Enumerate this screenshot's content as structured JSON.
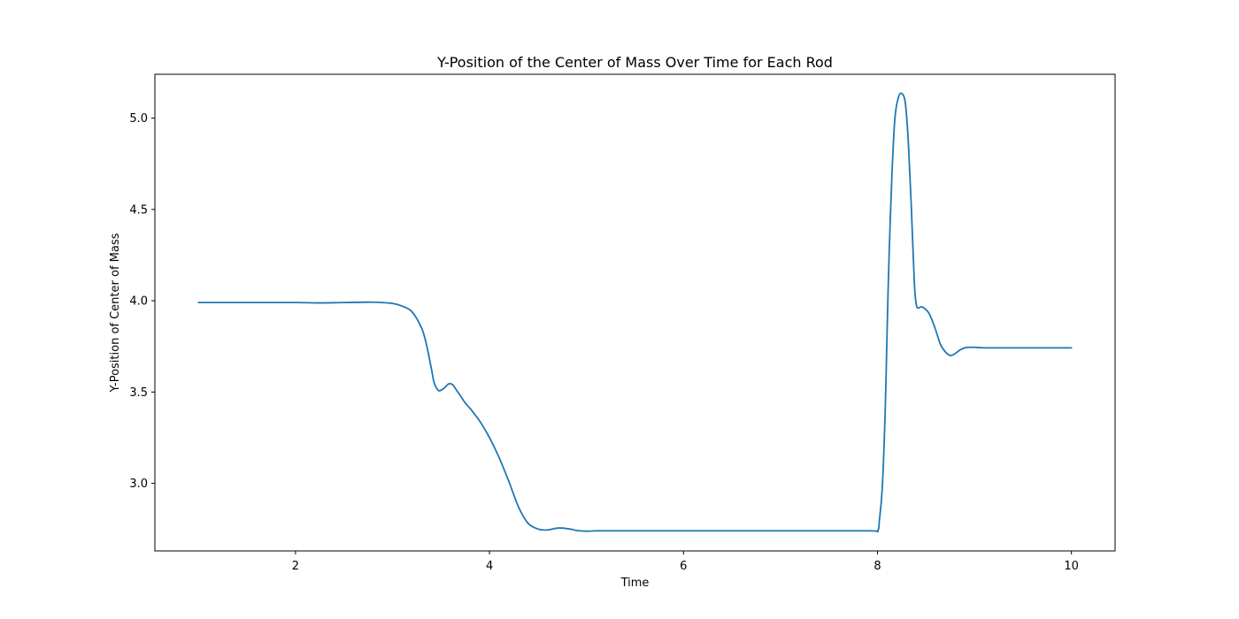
{
  "chart_data": {
    "type": "line",
    "title": "Y-Position of the Center of Mass Over Time for Each Rod",
    "xlabel": "Time",
    "ylabel": "Y-Position of Center of Mass",
    "xlim": [
      0.55,
      10.45
    ],
    "ylim": [
      2.63,
      5.24
    ],
    "xticks": [
      2,
      4,
      6,
      8,
      10
    ],
    "yticks": [
      3.0,
      3.5,
      4.0,
      4.5,
      5.0
    ],
    "xtick_labels": [
      "2",
      "4",
      "6",
      "8",
      "10"
    ],
    "ytick_labels": [
      "3.0",
      "3.5",
      "4.0",
      "4.5",
      "5.0"
    ],
    "grid": false,
    "colors": {
      "line": "#1f77b4",
      "axes": "#000000"
    },
    "series": [
      {
        "x": [
          1.0,
          1.5,
          2.0,
          2.25,
          2.5,
          2.8,
          3.0,
          3.1,
          3.2,
          3.3,
          3.35,
          3.4,
          3.43,
          3.47,
          3.5,
          3.54,
          3.58,
          3.62,
          3.66,
          3.7,
          3.75,
          3.8,
          3.9,
          4.0,
          4.1,
          4.2,
          4.3,
          4.4,
          4.5,
          4.55,
          4.6,
          4.65,
          4.7,
          4.75,
          4.8,
          4.85,
          4.9,
          5.0,
          5.1,
          5.2,
          5.5,
          6.0,
          7.0,
          7.9,
          8.0,
          8.02,
          8.05,
          8.08,
          8.1,
          8.12,
          8.15,
          8.18,
          8.22,
          8.26,
          8.29,
          8.32,
          8.35,
          8.38,
          8.4,
          8.42,
          8.45,
          8.48,
          8.52,
          8.55,
          8.6,
          8.65,
          8.7,
          8.75,
          8.8,
          8.85,
          8.9,
          8.95,
          9.0,
          9.1,
          9.3,
          9.6,
          10.0
        ],
        "y": [
          3.99,
          3.99,
          3.99,
          3.988,
          3.99,
          3.992,
          3.985,
          3.97,
          3.94,
          3.85,
          3.76,
          3.63,
          3.55,
          3.51,
          3.51,
          3.525,
          3.545,
          3.54,
          3.51,
          3.48,
          3.44,
          3.41,
          3.34,
          3.25,
          3.14,
          3.01,
          2.87,
          2.78,
          2.75,
          2.745,
          2.745,
          2.75,
          2.755,
          2.755,
          2.752,
          2.748,
          2.742,
          2.738,
          2.74,
          2.74,
          2.74,
          2.74,
          2.74,
          2.74,
          2.74,
          2.8,
          2.98,
          3.4,
          3.85,
          4.25,
          4.7,
          5.0,
          5.12,
          5.13,
          5.07,
          4.85,
          4.5,
          4.1,
          3.98,
          3.96,
          3.967,
          3.96,
          3.94,
          3.91,
          3.84,
          3.76,
          3.72,
          3.7,
          3.71,
          3.73,
          3.742,
          3.745,
          3.745,
          3.742,
          3.742,
          3.742,
          3.742
        ]
      }
    ]
  }
}
